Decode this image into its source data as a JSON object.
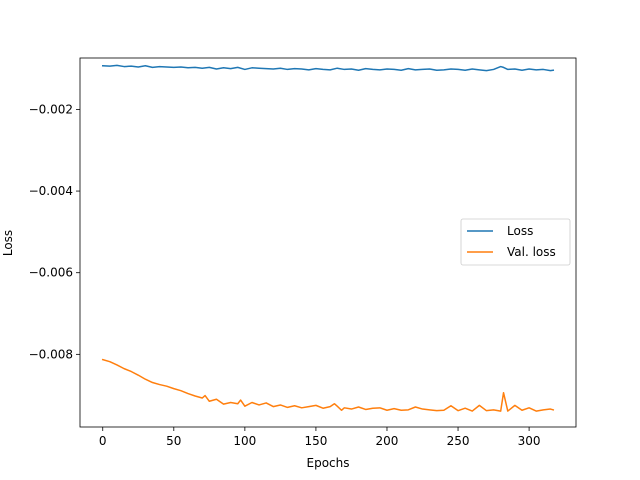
{
  "chart_data": {
    "type": "line",
    "title": "",
    "xlabel": "Epochs",
    "ylabel": "Loss",
    "xlim": [
      -16,
      333
    ],
    "ylim": [
      -0.00978,
      -0.00074
    ],
    "xticks": [
      0,
      50,
      100,
      150,
      200,
      250,
      300
    ],
    "xtick_labels": [
      "0",
      "50",
      "100",
      "150",
      "200",
      "250",
      "300"
    ],
    "yticks": [
      -0.002,
      -0.004,
      -0.006,
      -0.008
    ],
    "ytick_labels": [
      "−0.002",
      "−0.004",
      "−0.006",
      "−0.008"
    ],
    "legend_position": "center-right",
    "grid": false,
    "series": [
      {
        "name": "Loss",
        "color": "#1f77b4",
        "x": [
          0,
          5,
          10,
          15,
          20,
          25,
          30,
          35,
          40,
          45,
          50,
          55,
          60,
          65,
          70,
          75,
          80,
          85,
          90,
          95,
          100,
          105,
          110,
          115,
          120,
          125,
          130,
          135,
          140,
          145,
          150,
          155,
          160,
          165,
          170,
          175,
          180,
          185,
          190,
          195,
          200,
          205,
          210,
          215,
          220,
          225,
          230,
          235,
          240,
          245,
          250,
          255,
          260,
          265,
          270,
          275,
          280,
          282,
          285,
          290,
          295,
          300,
          305,
          310,
          315,
          317
        ],
        "y": [
          -0.00093,
          -0.00094,
          -0.00092,
          -0.00095,
          -0.00094,
          -0.00096,
          -0.00093,
          -0.00097,
          -0.00095,
          -0.00096,
          -0.00097,
          -0.00096,
          -0.00098,
          -0.00097,
          -0.00099,
          -0.00097,
          -0.00101,
          -0.00098,
          -0.001,
          -0.00097,
          -0.00102,
          -0.00098,
          -0.00099,
          -0.001,
          -0.00101,
          -0.00099,
          -0.00102,
          -0.001,
          -0.00101,
          -0.00103,
          -0.001,
          -0.00102,
          -0.00103,
          -0.00099,
          -0.00102,
          -0.00101,
          -0.00104,
          -0.001,
          -0.00102,
          -0.00103,
          -0.00101,
          -0.00102,
          -0.00104,
          -0.001,
          -0.00103,
          -0.00102,
          -0.00101,
          -0.00104,
          -0.00103,
          -0.00101,
          -0.00102,
          -0.00104,
          -0.00101,
          -0.00103,
          -0.00105,
          -0.00102,
          -0.00095,
          -0.00097,
          -0.00102,
          -0.00101,
          -0.00104,
          -0.00101,
          -0.00103,
          -0.00102,
          -0.00105,
          -0.00104
        ]
      },
      {
        "name": "Val. loss",
        "color": "#ff7f0e",
        "x": [
          0,
          5,
          10,
          15,
          20,
          25,
          30,
          35,
          40,
          45,
          50,
          55,
          60,
          65,
          70,
          72,
          75,
          80,
          85,
          90,
          95,
          97,
          100,
          105,
          110,
          115,
          120,
          125,
          130,
          135,
          140,
          145,
          150,
          155,
          160,
          163,
          165,
          168,
          170,
          175,
          180,
          185,
          190,
          195,
          200,
          205,
          210,
          215,
          220,
          225,
          230,
          235,
          240,
          245,
          250,
          255,
          260,
          265,
          270,
          275,
          280,
          282,
          285,
          290,
          295,
          300,
          305,
          310,
          315,
          317
        ],
        "y": [
          -0.00813,
          -0.00818,
          -0.00826,
          -0.00835,
          -0.00842,
          -0.00851,
          -0.00861,
          -0.00869,
          -0.00874,
          -0.00878,
          -0.00884,
          -0.00889,
          -0.00896,
          -0.00902,
          -0.00907,
          -0.00901,
          -0.00915,
          -0.0091,
          -0.00922,
          -0.00918,
          -0.00921,
          -0.00912,
          -0.00927,
          -0.00918,
          -0.00924,
          -0.00919,
          -0.00928,
          -0.00924,
          -0.0093,
          -0.00926,
          -0.00931,
          -0.00928,
          -0.00925,
          -0.00932,
          -0.00928,
          -0.00921,
          -0.00927,
          -0.00937,
          -0.00931,
          -0.00934,
          -0.00929,
          -0.00935,
          -0.00932,
          -0.00931,
          -0.00937,
          -0.00933,
          -0.00937,
          -0.00936,
          -0.00929,
          -0.00934,
          -0.00936,
          -0.00938,
          -0.00937,
          -0.00926,
          -0.00938,
          -0.00932,
          -0.00939,
          -0.00925,
          -0.00938,
          -0.00936,
          -0.00939,
          -0.00894,
          -0.00939,
          -0.00925,
          -0.00937,
          -0.00931,
          -0.00939,
          -0.00936,
          -0.00934,
          -0.00936
        ]
      }
    ]
  }
}
